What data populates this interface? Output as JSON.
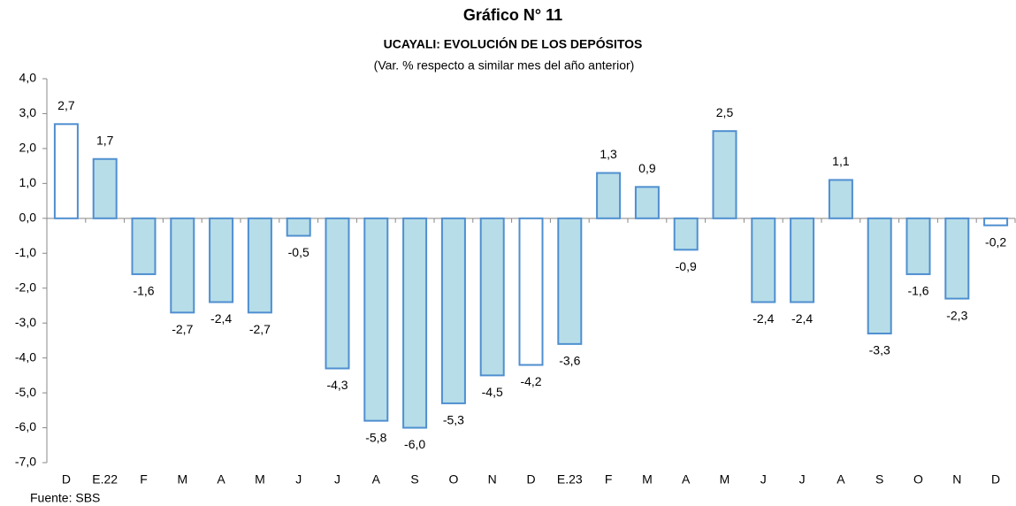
{
  "chart_data": {
    "type": "bar",
    "title": "Gráfico N° 11",
    "subtitle": "UCAYALI: EVOLUCIÓN DE LOS DEPÓSITOS",
    "note": "(Var. % respecto a similar mes del año anterior)",
    "source": "Fuente: SBS",
    "categories": [
      "D",
      "E.22",
      "F",
      "M",
      "A",
      "M",
      "J",
      "J",
      "A",
      "S",
      "O",
      "N",
      "D",
      "E.23",
      "F",
      "M",
      "A",
      "M",
      "J",
      "J",
      "A",
      "S",
      "O",
      "N",
      "D"
    ],
    "values": [
      2.7,
      1.7,
      -1.6,
      -2.7,
      -2.4,
      -2.7,
      -0.5,
      -4.3,
      -5.8,
      -6.0,
      -5.3,
      -4.5,
      -4.2,
      -3.6,
      1.3,
      0.9,
      -0.9,
      2.5,
      -2.4,
      -2.4,
      1.1,
      -3.3,
      -1.6,
      -2.3,
      -0.2
    ],
    "value_labels": [
      "2,7",
      "1,7",
      "-1,6",
      "-2,7",
      "-2,4",
      "-2,7",
      "-0,5",
      "-4,3",
      "-5,8",
      "-6,0",
      "-5,3",
      "-4,5",
      "-4,2",
      "-3,6",
      "1,3",
      "0,9",
      "-0,9",
      "2,5",
      "-2,4",
      "-2,4",
      "1,1",
      "-3,3",
      "-1,6",
      "-2,3",
      "-0,2"
    ],
    "colors": [
      "#ffffff",
      "#b7dde8",
      "#b7dde8",
      "#b7dde8",
      "#b7dde8",
      "#b7dde8",
      "#b7dde8",
      "#b7dde8",
      "#b7dde8",
      "#b7dde8",
      "#b7dde8",
      "#b7dde8",
      "#ffffff",
      "#b7dde8",
      "#b7dde8",
      "#b7dde8",
      "#b7dde8",
      "#b7dde8",
      "#b7dde8",
      "#b7dde8",
      "#b7dde8",
      "#b7dde8",
      "#b7dde8",
      "#b7dde8",
      "#ffffff"
    ],
    "border_color": "#4f8fd0",
    "ylim": [
      -7,
      4
    ],
    "yticks": [
      {
        "value": 4,
        "label": "4,0"
      },
      {
        "value": 3,
        "label": "3,0"
      },
      {
        "value": 2,
        "label": "2,0"
      },
      {
        "value": 1,
        "label": "1,0"
      },
      {
        "value": 0,
        "label": "0,0"
      },
      {
        "value": -1,
        "label": "-1,0"
      },
      {
        "value": -2,
        "label": "-2,0"
      },
      {
        "value": -3,
        "label": "-3,0"
      },
      {
        "value": -4,
        "label": "-4,0"
      },
      {
        "value": -5,
        "label": "-5,0"
      },
      {
        "value": -6,
        "label": "-6,0"
      },
      {
        "value": -7,
        "label": "-7,0"
      }
    ],
    "grid": false
  }
}
